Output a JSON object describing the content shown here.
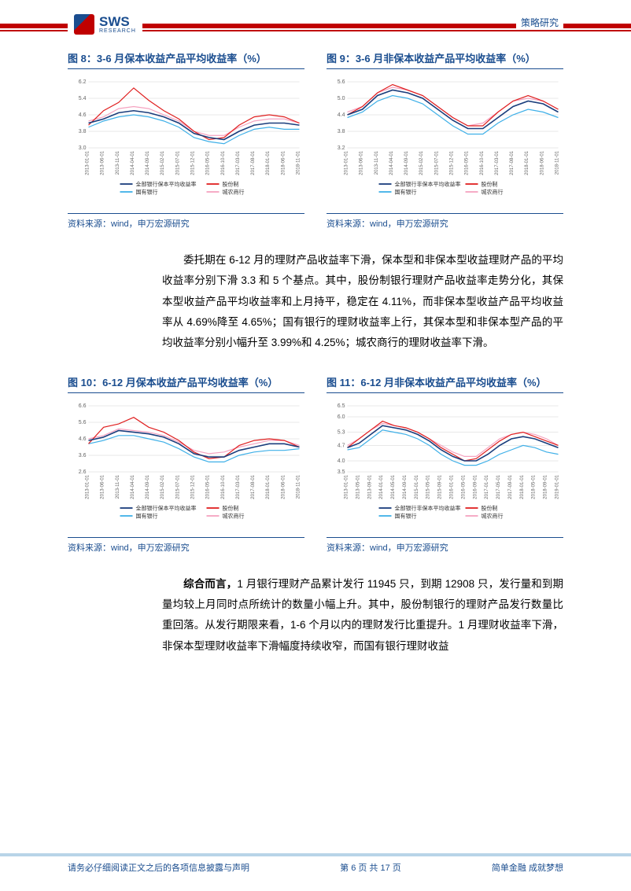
{
  "header": {
    "top_right": "策略研究",
    "logo_text": "SWS",
    "logo_sub": "RESEARCH"
  },
  "para1": "委托期在 6-12 月的理财产品收益率下滑，保本型和非保本型收益理财产品的平均收益率分别下滑 3.3 和 5 个基点。其中，股份制银行理财产品收益率走势分化，其保本型收益产品平均收益率和上月持平，稳定在 4.11%，而非保本型收益产品平均收益率从 4.69%降至 4.65%；国有银行的理财收益率上行，其保本型和非保本型产品的平均收益率分别小幅升至 3.99%和 4.25%；城农商行的理财收益率下滑。",
  "para2_lead": "综合而言，",
  "para2_rest": "1 月银行理财产品累计发行 11945 只，到期 12908 只，发行量和到期量均较上月同时点所统计的数量小幅上升。其中，股份制银行的理财产品发行数量比重回落。从发行期限来看，1-6 个月以内的理财发行比重提升。1 月理财收益率下滑，非保本型理财收益率下滑幅度持续收窄，而国有银行理财收益",
  "footer": {
    "left": "请务必仔细阅读正文之后的各项信息披露与声明",
    "mid": "第 6 页 共 17 页",
    "right": "简单金融 成就梦想"
  },
  "legend_labels": {
    "all_benben": "全部银行保本平均收益率",
    "all_feibenben": "全部银行非保本平均收益率",
    "gufen": "股份制",
    "guoyou": "国有银行",
    "chengnong": "城农商行"
  },
  "source_text": "资料来源：wind，申万宏源研究",
  "colors": {
    "series_all": "#1a3d7c",
    "series_gufen": "#e02020",
    "series_guoyou": "#3fb0e8",
    "series_chengnong": "#f5a3c0",
    "grid": "#d0d0d0",
    "axis": "#666666",
    "text": "#666666"
  },
  "charts": [
    {
      "id": "c8",
      "title": "图 8：3-6 月保本收益产品平均收益率（%）",
      "yticks": [
        3.0,
        3.8,
        4.6,
        5.4,
        6.2
      ],
      "ylim": [
        3.0,
        6.2
      ],
      "xlabels": [
        "2013-01-01",
        "2013-06-01",
        "2013-11-01",
        "2014-04-01",
        "2014-09-01",
        "2015-02-01",
        "2015-07-01",
        "2015-12-01",
        "2016-05-01",
        "2016-10-01",
        "2017-03-01",
        "2017-08-01",
        "2018-01-01",
        "2018-06-01",
        "2018-11-01"
      ],
      "legend_first": "all_benben",
      "series": {
        "all": [
          4.2,
          4.4,
          4.7,
          4.8,
          4.7,
          4.5,
          4.2,
          3.7,
          3.5,
          3.4,
          3.8,
          4.1,
          4.2,
          4.2,
          4.1
        ],
        "gufen": [
          4.1,
          4.8,
          5.2,
          5.9,
          5.3,
          4.8,
          4.4,
          3.8,
          3.4,
          3.5,
          4.1,
          4.5,
          4.6,
          4.5,
          4.2
        ],
        "guoyou": [
          4.0,
          4.3,
          4.5,
          4.6,
          4.5,
          4.3,
          4.0,
          3.5,
          3.3,
          3.2,
          3.6,
          3.9,
          4.0,
          3.9,
          3.9
        ],
        "chengnong": [
          4.3,
          4.5,
          4.9,
          5.0,
          4.9,
          4.6,
          4.3,
          3.8,
          3.6,
          3.6,
          4.0,
          4.3,
          4.4,
          4.4,
          4.2
        ]
      }
    },
    {
      "id": "c9",
      "title": "图 9：3-6 月非保本收益产品平均收益率（%）",
      "yticks": [
        3.2,
        3.8,
        4.4,
        5.0,
        5.6
      ],
      "ylim": [
        3.2,
        5.6
      ],
      "xlabels": [
        "2013-01-01",
        "2013-06-01",
        "2013-11-01",
        "2014-04-01",
        "2014-09-01",
        "2015-02-01",
        "2015-07-01",
        "2015-12-01",
        "2016-05-01",
        "2016-10-01",
        "2017-03-01",
        "2017-08-01",
        "2018-01-01",
        "2018-06-01",
        "2018-11-01"
      ],
      "legend_first": "all_feibenben",
      "series": {
        "all": [
          4.4,
          4.6,
          5.1,
          5.3,
          5.2,
          5.0,
          4.6,
          4.2,
          3.9,
          3.9,
          4.3,
          4.7,
          4.9,
          4.8,
          4.5
        ],
        "gufen": [
          4.4,
          4.7,
          5.2,
          5.5,
          5.3,
          5.1,
          4.7,
          4.3,
          4.0,
          4.0,
          4.5,
          4.9,
          5.1,
          4.9,
          4.6
        ],
        "guoyou": [
          4.3,
          4.5,
          4.9,
          5.1,
          5.0,
          4.8,
          4.4,
          4.0,
          3.7,
          3.7,
          4.1,
          4.4,
          4.6,
          4.5,
          4.3
        ],
        "chengnong": [
          4.5,
          4.7,
          5.2,
          5.4,
          5.3,
          5.1,
          4.7,
          4.3,
          4.0,
          4.1,
          4.5,
          4.9,
          5.0,
          4.9,
          4.6
        ]
      }
    },
    {
      "id": "c10",
      "title": "图 10：6-12 月保本收益产品平均收益率（%）",
      "yticks": [
        2.6,
        3.6,
        4.6,
        5.6,
        6.6
      ],
      "ylim": [
        2.6,
        6.6
      ],
      "xlabels": [
        "2013-01-01",
        "2013-06-01",
        "2013-11-01",
        "2014-04-01",
        "2014-09-01",
        "2015-02-01",
        "2015-07-01",
        "2015-12-01",
        "2016-05-01",
        "2016-10-01",
        "2017-03-01",
        "2017-08-01",
        "2018-01-01",
        "2018-06-01",
        "2018-11-01"
      ],
      "legend_first": "all_benben",
      "series": {
        "all": [
          4.5,
          4.7,
          5.1,
          5.0,
          4.9,
          4.7,
          4.3,
          3.7,
          3.5,
          3.5,
          3.9,
          4.1,
          4.3,
          4.3,
          4.1
        ],
        "gufen": [
          4.3,
          5.3,
          5.5,
          5.9,
          5.3,
          5.0,
          4.5,
          3.8,
          3.4,
          3.5,
          4.2,
          4.5,
          4.6,
          4.5,
          4.1
        ],
        "guoyou": [
          4.3,
          4.5,
          4.8,
          4.8,
          4.6,
          4.4,
          4.0,
          3.5,
          3.2,
          3.2,
          3.6,
          3.8,
          3.9,
          3.9,
          4.0
        ],
        "chengnong": [
          4.6,
          4.8,
          5.2,
          5.1,
          5.0,
          4.8,
          4.4,
          3.9,
          3.7,
          3.8,
          4.1,
          4.3,
          4.5,
          4.5,
          4.2
        ]
      }
    },
    {
      "id": "c11",
      "title": "图 11：6-12 月非保本收益产品平均收益率（%）",
      "yticks": [
        3.5,
        4.0,
        4.7,
        5.3,
        6.0,
        6.5
      ],
      "ylim": [
        3.5,
        6.5
      ],
      "xlabels": [
        "2013-01-01",
        "2013-05-01",
        "2013-09-01",
        "2014-01-01",
        "2014-05-01",
        "2014-09-01",
        "2015-01-01",
        "2015-05-01",
        "2015-09-01",
        "2016-01-01",
        "2016-05-01",
        "2016-09-01",
        "2017-01-01",
        "2017-05-01",
        "2017-09-01",
        "2018-01-01",
        "2018-05-01",
        "2018-09-01",
        "2019-01-01"
      ],
      "legend_first": "all_feibenben",
      "series": {
        "all": [
          4.6,
          4.8,
          5.2,
          5.6,
          5.5,
          5.4,
          5.2,
          4.9,
          4.5,
          4.2,
          4.0,
          4.0,
          4.3,
          4.7,
          5.0,
          5.1,
          5.0,
          4.8,
          4.6
        ],
        "gufen": [
          4.6,
          5.0,
          5.4,
          5.8,
          5.6,
          5.5,
          5.3,
          5.0,
          4.6,
          4.3,
          4.0,
          4.1,
          4.5,
          4.9,
          5.2,
          5.3,
          5.1,
          4.9,
          4.7
        ],
        "guoyou": [
          4.5,
          4.6,
          5.0,
          5.4,
          5.3,
          5.2,
          5.0,
          4.7,
          4.3,
          4.0,
          3.8,
          3.8,
          4.0,
          4.3,
          4.5,
          4.7,
          4.6,
          4.4,
          4.3
        ],
        "chengnong": [
          4.7,
          5.0,
          5.4,
          5.7,
          5.6,
          5.5,
          5.3,
          5.0,
          4.7,
          4.4,
          4.2,
          4.2,
          4.6,
          5.0,
          5.2,
          5.3,
          5.2,
          5.0,
          4.7
        ]
      }
    }
  ]
}
